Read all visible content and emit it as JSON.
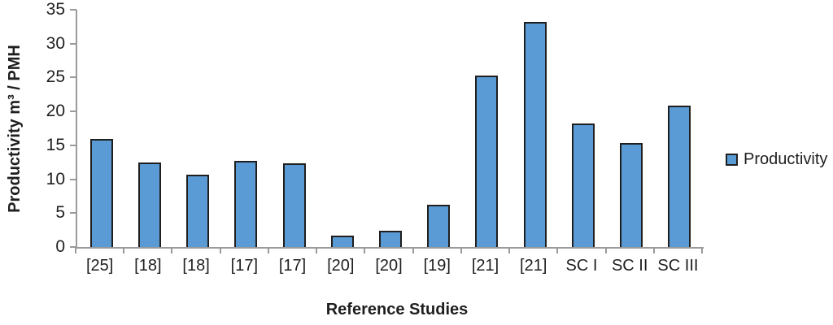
{
  "chart_data": {
    "type": "bar",
    "title": "",
    "categories": [
      "[25]",
      "[18]",
      "[18]",
      "[17]",
      "[17]",
      "[20]",
      "[20]",
      "[19]",
      "[21]",
      "[21]",
      "SC I",
      "SC II",
      "SC III"
    ],
    "series": [
      {
        "name": "Productivity",
        "values": [
          15.7,
          12.2,
          10.4,
          12.5,
          12.1,
          1.4,
          2.2,
          6.0,
          25,
          33,
          18,
          15.1,
          20.6
        ]
      }
    ],
    "xlabel": "Reference Studies",
    "ylabel": "Productivity m³ / PMH",
    "ylim": [
      0,
      35
    ],
    "ytick_step": 5,
    "yticks": [
      0,
      5,
      10,
      15,
      20,
      25,
      30,
      35
    ],
    "grid": false,
    "legend_position": "right",
    "legend_label": "Productivity",
    "bar_color": "#5B9BD5",
    "bar_border_color": "#1F1F1F",
    "axis_color": "#9A9A9A",
    "text_color": "#1F1F1F",
    "background_color": "#FFFFFF"
  }
}
